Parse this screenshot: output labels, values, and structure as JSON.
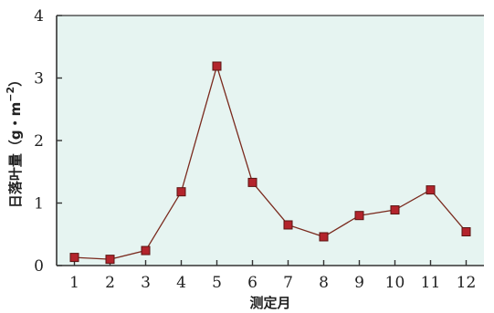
{
  "colors": {
    "plot_background": "#e6f4f1",
    "axis": "#333333",
    "line": "#7a2a1e",
    "marker_fill": "#b3242c",
    "marker_stroke": "#5a1512"
  },
  "chart_data": {
    "type": "line",
    "title": "",
    "xlabel": "测定月",
    "ylabel": "日落叶量（g・m",
    "ylabel_superscript": "−2",
    "ylabel_suffix": "）",
    "x": [
      1,
      2,
      3,
      4,
      5,
      6,
      7,
      8,
      9,
      10,
      11,
      12
    ],
    "x_tick_labels": [
      "1",
      "2",
      "3",
      "4",
      "5",
      "6",
      "7",
      "8",
      "9",
      "10",
      "11",
      "12"
    ],
    "y_ticks": [
      0,
      1,
      2,
      3,
      4
    ],
    "y_tick_labels": [
      "0",
      "1",
      "2",
      "3",
      "4"
    ],
    "ylim": [
      0,
      4
    ],
    "xlim": [
      0.5,
      12.5
    ],
    "grid": false,
    "legend": false,
    "series": [
      {
        "values": [
          0.13,
          0.1,
          0.24,
          1.18,
          3.19,
          1.33,
          0.65,
          0.46,
          0.8,
          0.89,
          1.21,
          0.54
        ],
        "marker": "square"
      }
    ]
  }
}
